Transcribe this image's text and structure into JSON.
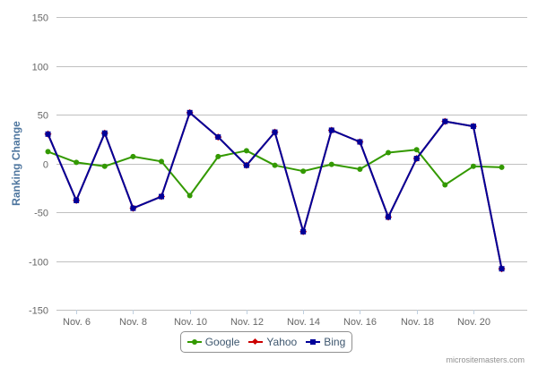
{
  "credit": "micrositemasters.com",
  "chart_data": {
    "type": "line",
    "title": "",
    "xlabel": "",
    "ylabel": "Ranking Change",
    "ylim": [
      -150,
      150
    ],
    "yticks": [
      -150,
      -100,
      -50,
      0,
      50,
      100,
      150
    ],
    "xlim": [
      5.3,
      21.9
    ],
    "xticks": [
      {
        "x": 6,
        "label": "Nov. 6"
      },
      {
        "x": 8,
        "label": "Nov. 8"
      },
      {
        "x": 10,
        "label": "Nov. 10"
      },
      {
        "x": 12,
        "label": "Nov. 12"
      },
      {
        "x": 14,
        "label": "Nov. 14"
      },
      {
        "x": 16,
        "label": "Nov. 16"
      },
      {
        "x": 18,
        "label": "Nov. 18"
      },
      {
        "x": 20,
        "label": "Nov. 20"
      }
    ],
    "grid": true,
    "legend_position": "bottom-center",
    "x": [
      5,
      6,
      7,
      8,
      9,
      10,
      11,
      12,
      13,
      14,
      15,
      16,
      17,
      18,
      19,
      20,
      21
    ],
    "series": [
      {
        "name": "Google",
        "color": "#339900",
        "marker": "circle",
        "values": [
          12,
          1,
          -3,
          7,
          2,
          -33,
          7,
          13,
          -2,
          -8,
          -1,
          -6,
          11,
          14,
          -22,
          -3,
          -4
        ]
      },
      {
        "name": "Yahoo",
        "color": "#cc0000",
        "marker": "diamond",
        "values": [
          30,
          -38,
          31,
          -46,
          -34,
          52,
          27,
          -2,
          32,
          -70,
          34,
          22,
          -55,
          5,
          43,
          38,
          -108
        ]
      },
      {
        "name": "Bing",
        "color": "#000099",
        "marker": "square",
        "values": [
          30,
          -38,
          31,
          -46,
          -34,
          52,
          27,
          -2,
          32,
          -70,
          34,
          22,
          -55,
          5,
          43,
          38,
          -108
        ]
      }
    ]
  }
}
